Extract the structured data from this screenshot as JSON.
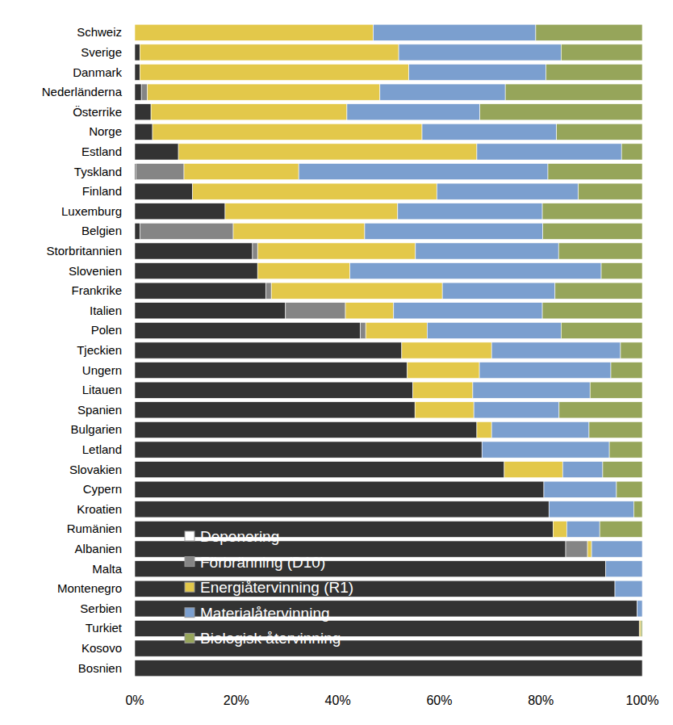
{
  "chart_data": {
    "type": "bar",
    "orientation": "horizontal",
    "stacked": true,
    "grid": false,
    "legend": "lower left",
    "categories": [
      "Schweiz",
      "Sverige",
      "Danmark",
      "Nederländerna",
      "Österrike",
      "Norge",
      "Estland",
      "Tyskland",
      "Finland",
      "Luxemburg",
      "Belgien",
      "Storbritannien",
      "Slovenien",
      "Frankrike",
      "Italien",
      "Polen",
      "Tjeckien",
      "Ungern",
      "Litauen",
      "Spanien",
      "Bulgarien",
      "Letland",
      "Slovakien",
      "Cypern",
      "Kroatien",
      "Rumänien",
      "Albanien",
      "Malta",
      "Montenegro",
      "Serbien",
      "Turkiet",
      "Kosovo",
      "Bosnien"
    ],
    "xlim": [
      0,
      100
    ],
    "xticks": [
      {
        "value": 0,
        "label": "0%"
      },
      {
        "value": 20,
        "label": "20%"
      },
      {
        "value": 40,
        "label": "40%"
      },
      {
        "value": 60,
        "label": "60%"
      },
      {
        "value": 80,
        "label": "80%"
      },
      {
        "value": 100,
        "label": "100%"
      }
    ],
    "series": [
      {
        "name": "Deponering",
        "color": "#333333",
        "values": [
          0,
          1,
          1,
          1.3,
          3.2,
          3.5,
          8.6,
          0.2,
          11.4,
          17.8,
          1,
          23.2,
          24.2,
          25.8,
          29.7,
          44.4,
          52.6,
          53.7,
          54.8,
          55.2,
          67.4,
          68.4,
          72.8,
          80.6,
          81.6,
          82.4,
          84.9,
          92.8,
          94.6,
          99,
          99.4,
          100,
          100
        ]
      },
      {
        "name": "Förbränning (D10)",
        "color": "#858585",
        "values": [
          0,
          0,
          0,
          1.2,
          0,
          0,
          0,
          9.5,
          0,
          0,
          18.4,
          1,
          0,
          1.1,
          11.8,
          1.1,
          0,
          0,
          0,
          0,
          0,
          0,
          0,
          0,
          0,
          0,
          4.3,
          0,
          0,
          0,
          0,
          0,
          0
        ]
      },
      {
        "name": "Energiåtervinning (R1)",
        "color": "#e3c84a",
        "values": [
          47,
          51,
          53,
          45.8,
          38.6,
          53.1,
          58.8,
          22.6,
          48.1,
          34,
          25.9,
          31.1,
          18.2,
          33.7,
          9.5,
          12.1,
          17.7,
          14.2,
          11.8,
          11.6,
          2.9,
          0,
          11.5,
          0,
          0,
          2.7,
          0.8,
          0,
          0,
          0,
          0.3,
          0,
          0
        ]
      },
      {
        "name": "Materialåtervinning",
        "color": "#7b9fcf",
        "values": [
          32,
          32,
          27,
          24.7,
          26.2,
          26.5,
          28.5,
          49.1,
          27.9,
          28.5,
          35.1,
          28.2,
          49.5,
          22.2,
          29.3,
          26.4,
          25.4,
          25.9,
          23.1,
          16.8,
          19.2,
          25.1,
          7.9,
          14.3,
          16.7,
          6.5,
          10,
          7.2,
          5.4,
          1,
          0,
          0,
          0
        ]
      },
      {
        "name": "Biologisk återvinning",
        "color": "#96a55a",
        "values": [
          21,
          16,
          19,
          27,
          32,
          16.9,
          4.1,
          18.6,
          12.6,
          19.7,
          19.6,
          16.5,
          8.1,
          17.2,
          19.7,
          16,
          4.3,
          6.2,
          10.3,
          16.4,
          10.5,
          6.5,
          7.8,
          5.1,
          1.7,
          8.4,
          0,
          0,
          0,
          0,
          0.3,
          0,
          0
        ]
      }
    ]
  }
}
